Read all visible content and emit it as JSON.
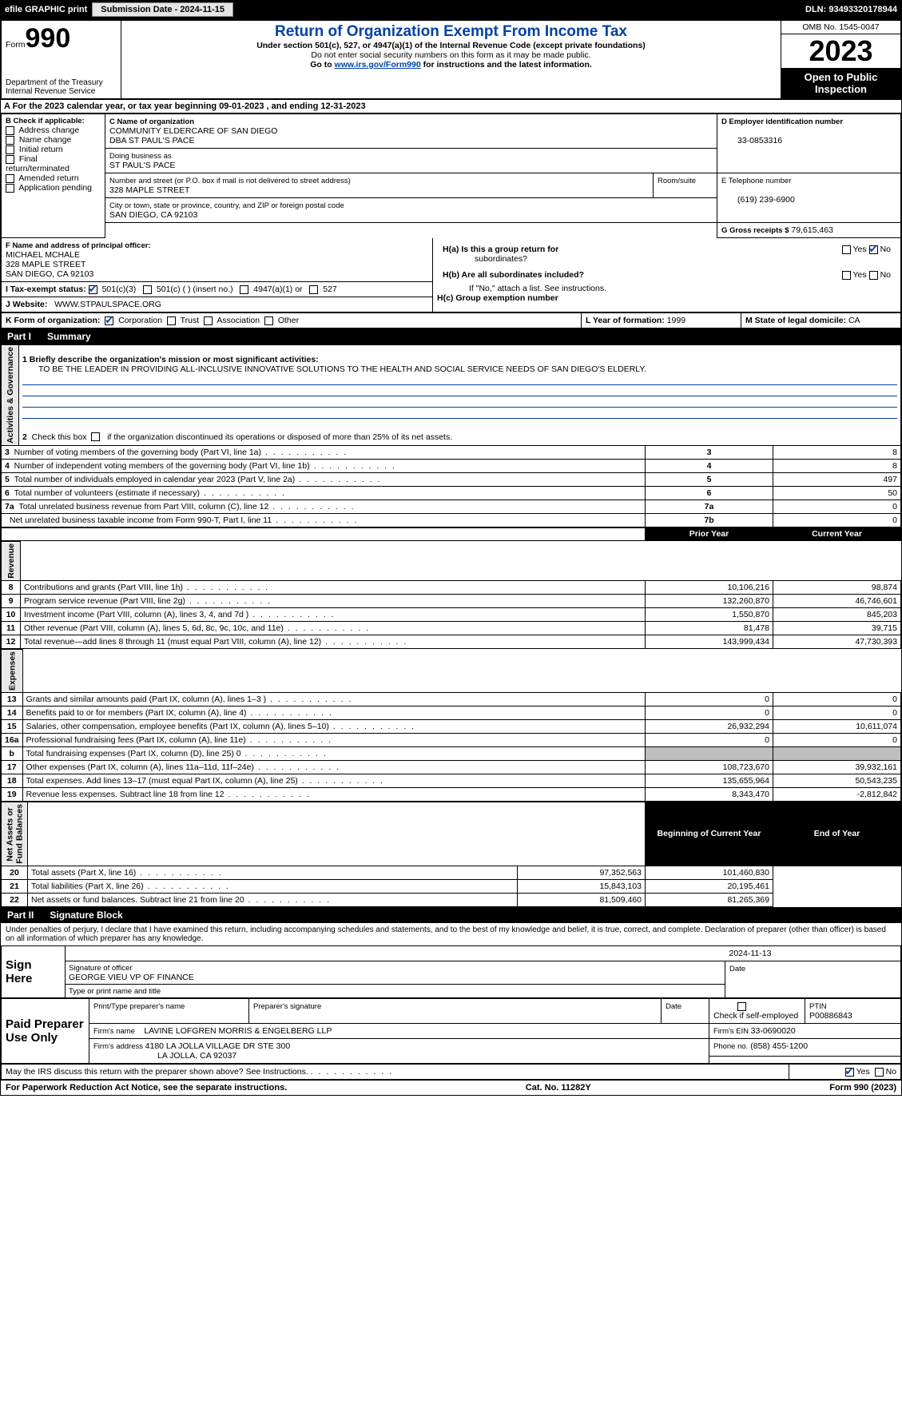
{
  "topbar": {
    "efile": "efile GRAPHIC print",
    "submission": "Submission Date - 2024-11-15",
    "dln": "DLN: 93493320178944"
  },
  "header": {
    "form_prefix": "Form",
    "form_no": "990",
    "title": "Return of Organization Exempt From Income Tax",
    "subtitle1": "Under section 501(c), 527, or 4947(a)(1) of the Internal Revenue Code (except private foundations)",
    "subtitle2": "Do not enter social security numbers on this form as it may be made public.",
    "subtitle3_pre": "Go to ",
    "subtitle3_link": "www.irs.gov/Form990",
    "subtitle3_post": " for instructions and the latest information.",
    "dept": "Department of the Treasury\nInternal Revenue Service",
    "omb": "OMB No. 1545-0047",
    "year": "2023",
    "open": "Open to Public Inspection"
  },
  "lineA": "A For the 2023 calendar year, or tax year beginning 09-01-2023   , and ending 12-31-2023",
  "boxB": {
    "label": "B Check if applicable:",
    "items": [
      "Address change",
      "Name change",
      "Initial return",
      "Final return/terminated",
      "Amended return",
      "Application pending"
    ]
  },
  "boxC": {
    "label": "C Name of organization",
    "line1": "COMMUNITY ELDERCARE OF SAN DIEGO",
    "line2": "DBA ST PAUL'S PACE",
    "dba_label": "Doing business as",
    "dba": "ST PAUL'S PACE",
    "street_label": "Number and street (or P.O. box if mail is not delivered to street address)",
    "street": "328 MAPLE STREET",
    "room_label": "Room/suite",
    "city_label": "City or town, state or province, country, and ZIP or foreign postal code",
    "city": "SAN DIEGO, CA  92103"
  },
  "boxD": {
    "label": "D Employer identification number",
    "val": "33-0853316"
  },
  "boxE": {
    "label": "E Telephone number",
    "val": "(619) 239-6900"
  },
  "boxG": {
    "label": "G Gross receipts $",
    "val": "79,615,463"
  },
  "boxF": {
    "label": "F Name and address of principal officer:",
    "name": "MICHAEL MCHALE",
    "street": "328 MAPLE STREET",
    "city": "SAN DIEGO, CA  92103"
  },
  "boxH": {
    "ha": "H(a)  Is this a group return for",
    "ha2": "subordinates?",
    "hb": "H(b)  Are all subordinates included?",
    "hb2": "If \"No,\" attach a list. See instructions.",
    "hc": "H(c)  Group exemption number  "
  },
  "boxI": {
    "label": "I    Tax-exempt status:",
    "opts": [
      "501(c)(3)",
      "501(c) (  ) (insert no.)",
      "4947(a)(1) or",
      "527"
    ]
  },
  "boxJ": {
    "label": "J    Website: ",
    "val": "WWW.STPAULSPACE.ORG"
  },
  "boxK": {
    "label": "K Form of organization:",
    "opts": [
      "Corporation",
      "Trust",
      "Association",
      "Other"
    ]
  },
  "boxL": {
    "label": "L Year of formation:",
    "val": "1999"
  },
  "boxM": {
    "label": "M State of legal domicile:",
    "val": "CA"
  },
  "part1": {
    "title": "Part I",
    "subtitle": "Summary",
    "mission_label": "1   Briefly describe the organization's mission or most significant activities:",
    "mission": "TO BE THE LEADER IN PROVIDING ALL-INCLUSIVE INNOVATIVE SOLUTIONS TO THE HEALTH AND SOCIAL SERVICE NEEDS OF SAN DIEGO'S ELDERLY.",
    "line2": "2   Check this box         if the organization discontinued its operations or disposed of more than 25% of its net assets.",
    "vert_labels": [
      "Activities & Governance",
      "Revenue",
      "Expenses",
      "Net Assets or\nFund Balances"
    ],
    "gov_rows": [
      {
        "n": "3",
        "d": "Number of voting members of the governing body (Part VI, line 1a)",
        "k": "3",
        "v": "8"
      },
      {
        "n": "4",
        "d": "Number of independent voting members of the governing body (Part VI, line 1b)",
        "k": "4",
        "v": "8"
      },
      {
        "n": "5",
        "d": "Total number of individuals employed in calendar year 2023 (Part V, line 2a)",
        "k": "5",
        "v": "497"
      },
      {
        "n": "6",
        "d": "Total number of volunteers (estimate if necessary)",
        "k": "6",
        "v": "50"
      },
      {
        "n": "7a",
        "d": "Total unrelated business revenue from Part VIII, column (C), line 12",
        "k": "7a",
        "v": "0"
      },
      {
        "n": "",
        "d": "Net unrelated business taxable income from Form 990-T, Part I, line 11",
        "k": "7b",
        "v": "0"
      }
    ],
    "rev_head": {
      "py": "Prior Year",
      "cy": "Current Year"
    },
    "rev_rows": [
      {
        "n": "8",
        "d": "Contributions and grants (Part VIII, line 1h)",
        "py": "10,106,216",
        "cy": "98,874"
      },
      {
        "n": "9",
        "d": "Program service revenue (Part VIII, line 2g)",
        "py": "132,260,870",
        "cy": "46,746,601"
      },
      {
        "n": "10",
        "d": "Investment income (Part VIII, column (A), lines 3, 4, and 7d )",
        "py": "1,550,870",
        "cy": "845,203"
      },
      {
        "n": "11",
        "d": "Other revenue (Part VIII, column (A), lines 5, 6d, 8c, 9c, 10c, and 11e)",
        "py": "81,478",
        "cy": "39,715"
      },
      {
        "n": "12",
        "d": "Total revenue—add lines 8 through 11 (must equal Part VIII, column (A), line 12)",
        "py": "143,999,434",
        "cy": "47,730,393"
      }
    ],
    "exp_rows": [
      {
        "n": "13",
        "d": "Grants and similar amounts paid (Part IX, column (A), lines 1–3 )",
        "py": "0",
        "cy": "0"
      },
      {
        "n": "14",
        "d": "Benefits paid to or for members (Part IX, column (A), line 4)",
        "py": "0",
        "cy": "0"
      },
      {
        "n": "15",
        "d": "Salaries, other compensation, employee benefits (Part IX, column (A), lines 5–10)",
        "py": "26,932,294",
        "cy": "10,611,074"
      },
      {
        "n": "16a",
        "d": "Professional fundraising fees (Part IX, column (A), line 11e)",
        "py": "0",
        "cy": "0"
      },
      {
        "n": "b",
        "d": "Total fundraising expenses (Part IX, column (D), line 25) 0",
        "py": "GRAY",
        "cy": "GRAY"
      },
      {
        "n": "17",
        "d": "Other expenses (Part IX, column (A), lines 11a–11d, 11f–24e)",
        "py": "108,723,670",
        "cy": "39,932,161"
      },
      {
        "n": "18",
        "d": "Total expenses. Add lines 13–17 (must equal Part IX, column (A), line 25)",
        "py": "135,655,964",
        "cy": "50,543,235"
      },
      {
        "n": "19",
        "d": "Revenue less expenses. Subtract line 18 from line 12",
        "py": "8,343,470",
        "cy": "-2,812,842"
      }
    ],
    "net_head": {
      "py": "Beginning of Current Year",
      "cy": "End of Year"
    },
    "net_rows": [
      {
        "n": "20",
        "d": "Total assets (Part X, line 16)",
        "py": "97,352,563",
        "cy": "101,460,830"
      },
      {
        "n": "21",
        "d": "Total liabilities (Part X, line 26)",
        "py": "15,843,103",
        "cy": "20,195,461"
      },
      {
        "n": "22",
        "d": "Net assets or fund balances. Subtract line 21 from line 20",
        "py": "81,509,460",
        "cy": "81,265,369"
      }
    ]
  },
  "part2": {
    "title": "Part II",
    "subtitle": "Signature Block",
    "decl": "Under penalties of perjury, I declare that I have examined this return, including accompanying schedules and statements, and to the best of my knowledge and belief, it is true, correct, and complete. Declaration of preparer (other than officer) is based on all information of which preparer has any knowledge.",
    "sign_here": "Sign Here",
    "sig_officer": "Signature of officer",
    "sig_name": "GEORGE VIEU  VP OF FINANCE",
    "sig_type": "Type or print name and title",
    "date": "2024-11-13",
    "date_label": "Date",
    "paid": "Paid Preparer Use Only",
    "prep_name_label": "Print/Type preparer's name",
    "prep_sig_label": "Preparer's signature",
    "check_label": "Check         if self-employed",
    "ptin_label": "PTIN",
    "ptin": "P00886843",
    "firm_name_label": "Firm's name   ",
    "firm_name": "LAVINE LOFGREN MORRIS & ENGELBERG LLP",
    "firm_ein_label": "Firm's EIN  ",
    "firm_ein": "33-0690020",
    "firm_addr_label": "Firm's address ",
    "firm_addr1": "4180 LA JOLLA VILLAGE DR STE 300",
    "firm_addr2": "LA JOLLA, CA  92037",
    "phone_label": "Phone no.",
    "phone": "(858) 455-1200",
    "discuss": "May the IRS discuss this return with the preparer shown above? See Instructions."
  },
  "footer": {
    "left": "For Paperwork Reduction Act Notice, see the separate instructions.",
    "mid": "Cat. No. 11282Y",
    "right": "Form 990 (2023)"
  },
  "yn": {
    "yes": "Yes",
    "no": "No"
  }
}
